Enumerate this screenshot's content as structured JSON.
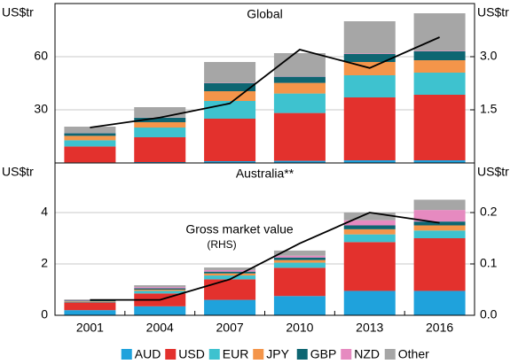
{
  "chart_data": {
    "type": "bar",
    "categories": [
      "2001",
      "2004",
      "2007",
      "2010",
      "2013",
      "2016"
    ],
    "series": [
      {
        "name": "AUD",
        "color": "#1fa2dc"
      },
      {
        "name": "USD",
        "color": "#e3312d"
      },
      {
        "name": "EUR",
        "color": "#3ec2cf"
      },
      {
        "name": "JPY",
        "color": "#f4954a"
      },
      {
        "name": "GBP",
        "color": "#0e6672"
      },
      {
        "name": "NZD",
        "color": "#e68ac0"
      },
      {
        "name": "Other",
        "color": "#a6a6a6"
      }
    ],
    "line_color": "#000000",
    "grid": true,
    "panels": [
      {
        "title": "Global",
        "y_label": "US$tr",
        "y2_label": "US$tr",
        "ylim": [
          0,
          90
        ],
        "yticks": [
          30,
          60
        ],
        "y2lim": [
          0,
          4.5
        ],
        "y2ticks": [
          1.5,
          {
            "value": 3,
            "label": "3.0"
          }
        ],
        "series_values": [
          [
            0.3,
            0.5,
            1,
            1.2,
            1.5,
            1.5
          ],
          [
            9,
            14,
            24,
            27,
            35.5,
            37
          ],
          [
            3.5,
            5.5,
            10,
            11,
            12.5,
            12.5
          ],
          [
            2.5,
            3,
            5.5,
            6,
            7.5,
            7
          ],
          [
            1.5,
            2.5,
            4.5,
            3.5,
            4.5,
            5
          ],
          [
            0.1,
            0.1,
            0.2,
            0.2,
            0.3,
            0.3
          ],
          [
            3.6,
            5.9,
            11.8,
            13.1,
            18.2,
            21.2
          ]
        ],
        "line": {
          "axis": "y2",
          "values": [
            1.0,
            1.28,
            1.68,
            3.2,
            2.68,
            3.55
          ]
        }
      },
      {
        "title": "Australia**",
        "y_label": "US$tr",
        "y2_label": "US$tr",
        "ylim": [
          0,
          6
        ],
        "yticks": [
          0,
          2,
          4
        ],
        "y2lim": [
          0,
          0.3
        ],
        "y2ticks": [
          {
            "value": 0,
            "label": "0.0"
          },
          0.1,
          0.2
        ],
        "series_values": [
          [
            0.2,
            0.35,
            0.6,
            0.75,
            0.95,
            0.95
          ],
          [
            0.3,
            0.5,
            0.8,
            1.1,
            1.9,
            2.05
          ],
          [
            0.03,
            0.1,
            0.15,
            0.2,
            0.3,
            0.3
          ],
          [
            0.02,
            0.05,
            0.08,
            0.1,
            0.2,
            0.2
          ],
          [
            0.02,
            0.05,
            0.07,
            0.1,
            0.15,
            0.15
          ],
          [
            0.02,
            0.05,
            0.06,
            0.07,
            0.2,
            0.45
          ],
          [
            0.03,
            0.07,
            0.1,
            0.2,
            0.3,
            0.4
          ]
        ],
        "line": {
          "axis": "y2",
          "values": [
            0.03,
            0.03,
            0.07,
            0.14,
            0.2,
            0.18
          ]
        },
        "annotation": "Gross market value",
        "annotation_sub": "(RHS)"
      }
    ]
  }
}
